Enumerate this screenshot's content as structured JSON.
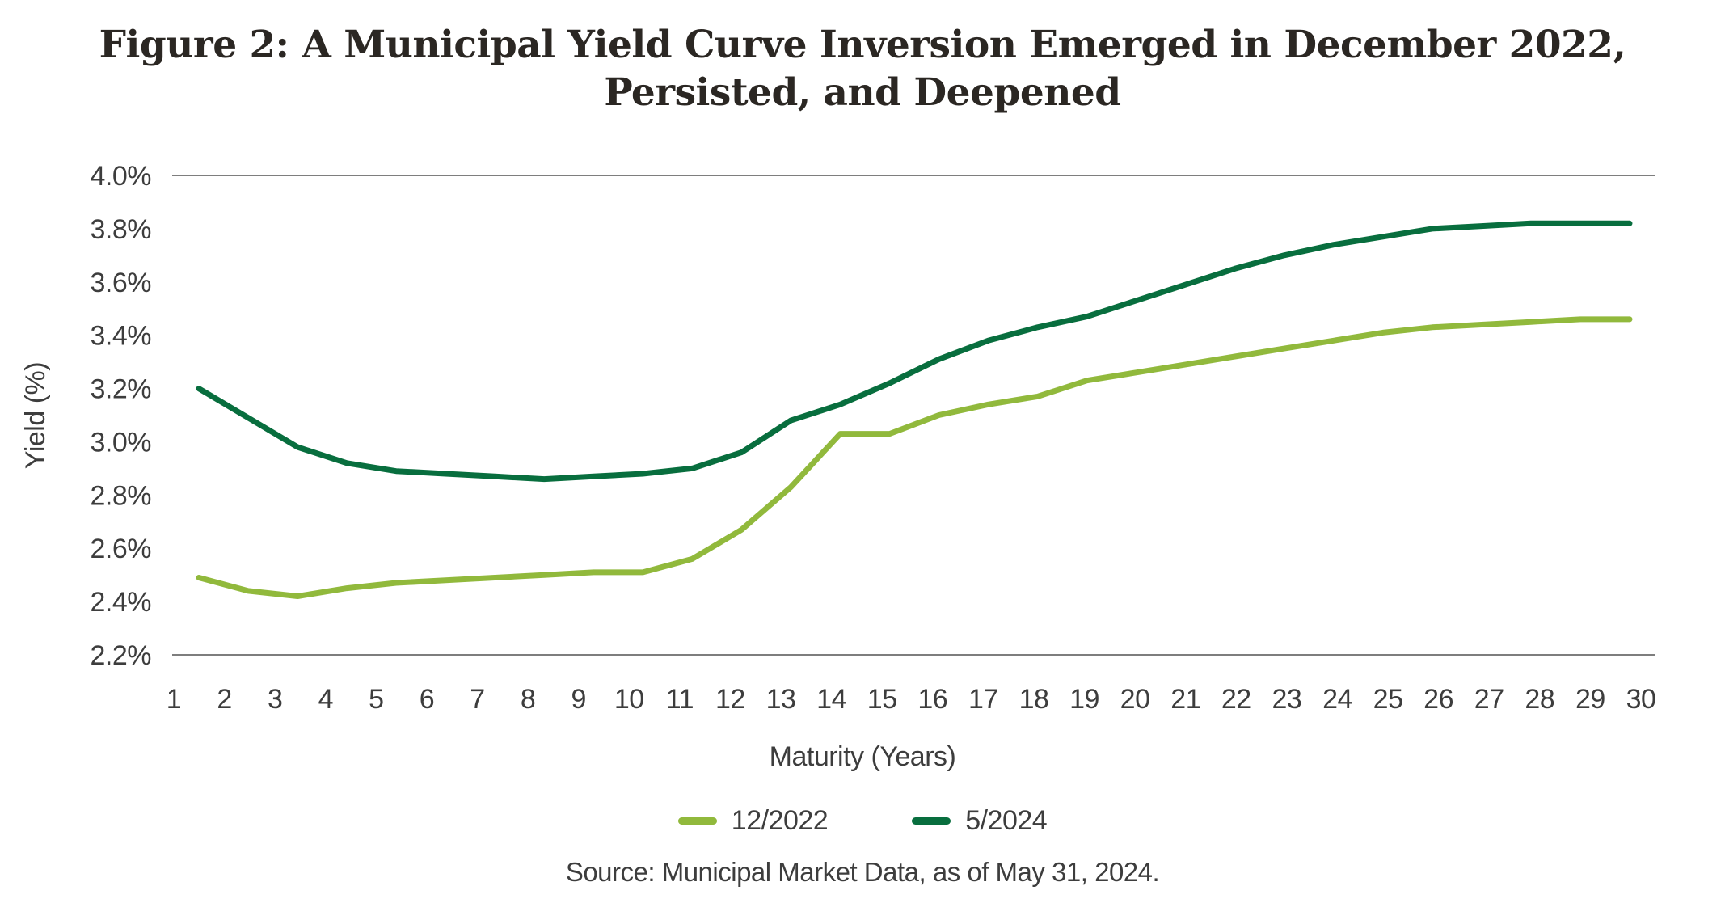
{
  "figure": {
    "title_line1": "Figure 2: A Municipal Yield Curve Inversion Emerged in December 2022,",
    "title_line2": "Persisted, and Deepened",
    "source": "Source: Municipal Market Data, as of May 31, 2024."
  },
  "chart_data": {
    "type": "line",
    "title": "Figure 2: A Municipal Yield Curve Inversion Emerged in December 2022, Persisted, and Deepened",
    "xlabel": "Maturity (Years)",
    "ylabel": "Yield (%)",
    "x": [
      1,
      2,
      3,
      4,
      5,
      6,
      7,
      8,
      9,
      10,
      11,
      12,
      13,
      14,
      15,
      16,
      17,
      18,
      19,
      20,
      21,
      22,
      23,
      24,
      25,
      26,
      27,
      28,
      29,
      30
    ],
    "series": [
      {
        "name": "12/2022",
        "color": "#91B93C",
        "values": [
          2.49,
          2.44,
          2.42,
          2.45,
          2.47,
          2.48,
          2.49,
          2.5,
          2.51,
          2.51,
          2.56,
          2.67,
          2.83,
          3.03,
          3.03,
          3.1,
          3.14,
          3.17,
          3.23,
          3.26,
          3.29,
          3.32,
          3.35,
          3.38,
          3.41,
          3.43,
          3.44,
          3.45,
          3.46,
          3.46
        ]
      },
      {
        "name": "5/2024",
        "color": "#086E3E",
        "values": [
          3.2,
          3.09,
          2.98,
          2.92,
          2.89,
          2.88,
          2.87,
          2.86,
          2.87,
          2.88,
          2.9,
          2.96,
          3.08,
          3.14,
          3.22,
          3.31,
          3.38,
          3.43,
          3.47,
          3.53,
          3.59,
          3.65,
          3.7,
          3.74,
          3.77,
          3.8,
          3.81,
          3.82,
          3.82,
          3.82
        ]
      }
    ],
    "ylim": [
      2.2,
      4.0
    ],
    "yticks": [
      {
        "value": 4.0,
        "label": "4.0%"
      },
      {
        "value": 3.8,
        "label": "3.8%"
      },
      {
        "value": 3.6,
        "label": "3.6%"
      },
      {
        "value": 3.4,
        "label": "3.4%"
      },
      {
        "value": 3.2,
        "label": "3.2%"
      },
      {
        "value": 3.0,
        "label": "3.0%"
      },
      {
        "value": 2.8,
        "label": "2.8%"
      },
      {
        "value": 2.6,
        "label": "2.6%"
      },
      {
        "value": 2.4,
        "label": "2.4%"
      },
      {
        "value": 2.2,
        "label": "2.2%"
      }
    ],
    "gridlines_at": [
      4.0,
      2.2
    ],
    "grid": "horizontal lines at top (4.0%) and bottom (2.2%) only",
    "legend_position": "bottom-center"
  }
}
